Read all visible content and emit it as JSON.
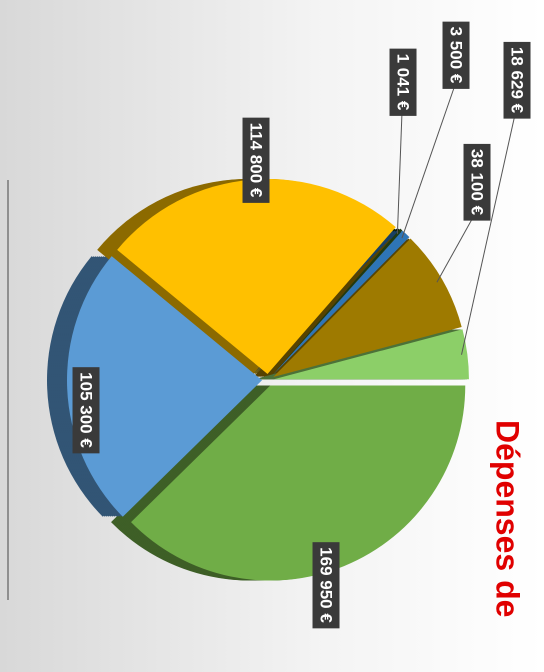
{
  "chart_data": {
    "type": "pie",
    "title": "Dépenses de",
    "categories": [
      null,
      null,
      null,
      null,
      null,
      null,
      null
    ],
    "values": [
      169950,
      105300,
      114800,
      1041,
      3500,
      38100,
      18629
    ],
    "value_labels": [
      "169 950 €",
      "105 300 €",
      "114 800 €",
      "1 041 €",
      "3 500 €",
      "38 100 €",
      "18 629 €"
    ],
    "colors": [
      "#70ad47",
      "#5b9bd5",
      "#ffc000",
      "#1e3a12",
      "#2e75b6",
      "#9e7a00",
      "#8ccf68"
    ]
  }
}
